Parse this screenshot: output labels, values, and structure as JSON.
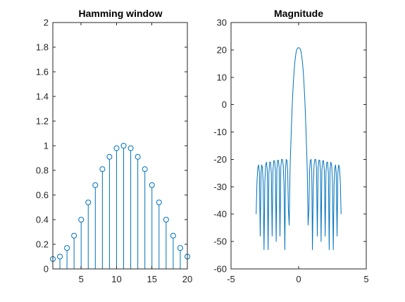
{
  "colors": {
    "series": "#0072BD",
    "axis": "#262626",
    "background": "#ffffff"
  },
  "chart_data": [
    {
      "type": "stem",
      "title": "Hamming window",
      "xlabel": "",
      "ylabel": "",
      "xlim": [
        1,
        20
      ],
      "ylim": [
        0,
        2
      ],
      "xticks": [
        5,
        10,
        15,
        20
      ],
      "xtick_labels": [
        "5",
        "10",
        "15",
        "20"
      ],
      "yticks": [
        0,
        0.2,
        0.4,
        0.6,
        0.8,
        1,
        1.2,
        1.4,
        1.6,
        1.8,
        2
      ],
      "ytick_labels": [
        "0",
        "0.2",
        "0.4",
        "0.6",
        "0.8",
        "1",
        "1.2",
        "1.4",
        "1.6",
        "1.8",
        "2"
      ],
      "grid": false,
      "x": [
        1,
        2,
        3,
        4,
        5,
        6,
        7,
        8,
        9,
        10,
        11,
        12,
        13,
        14,
        15,
        16,
        17,
        18,
        19,
        20
      ],
      "values": [
        0.08,
        0.1,
        0.17,
        0.27,
        0.4,
        0.54,
        0.68,
        0.81,
        0.91,
        0.98,
        1.0,
        0.98,
        0.91,
        0.81,
        0.68,
        0.54,
        0.4,
        0.27,
        0.17,
        0.1
      ]
    },
    {
      "type": "line",
      "title": "Magnitude",
      "xlabel": "",
      "ylabel": "",
      "xlim": [
        -5,
        5
      ],
      "ylim": [
        -60,
        30
      ],
      "xticks": [
        -5,
        0,
        5
      ],
      "xtick_labels": [
        "-5",
        "0",
        "5"
      ],
      "yticks": [
        -60,
        -50,
        -40,
        -30,
        -20,
        -10,
        0,
        10,
        20,
        30
      ],
      "ytick_labels": [
        "-60",
        "-50",
        "-40",
        "-30",
        "-20",
        "-10",
        "0",
        "10",
        "20",
        "30"
      ],
      "grid": false,
      "x": [
        -3.1416,
        -3.08,
        -3.02,
        -2.96,
        -2.9,
        -2.84,
        -2.78,
        -2.73,
        -2.68,
        -2.62,
        -2.56,
        -2.5,
        -2.44,
        -2.38,
        -2.32,
        -2.26,
        -2.2,
        -2.14,
        -2.08,
        -2.02,
        -1.96,
        -1.9,
        -1.84,
        -1.78,
        -1.72,
        -1.66,
        -1.61,
        -1.56,
        -1.5,
        -1.44,
        -1.38,
        -1.32,
        -1.26,
        -1.2,
        -1.14,
        -1.08,
        -1.02,
        -0.97,
        -0.92,
        -0.86,
        -0.81,
        -0.76,
        -0.7,
        -0.65,
        -0.62,
        -0.58,
        -0.54,
        -0.5,
        -0.46,
        -0.42,
        -0.38,
        -0.34,
        -0.3,
        -0.26,
        -0.22,
        -0.18,
        -0.14,
        -0.1,
        -0.06,
        -0.02,
        0,
        0.02,
        0.06,
        0.1,
        0.14,
        0.18,
        0.22,
        0.26,
        0.3,
        0.34,
        0.38,
        0.42,
        0.46,
        0.5,
        0.54,
        0.58,
        0.62,
        0.65,
        0.7,
        0.76,
        0.81,
        0.86,
        0.92,
        0.97,
        1.02,
        1.08,
        1.14,
        1.2,
        1.26,
        1.32,
        1.38,
        1.44,
        1.5,
        1.56,
        1.61,
        1.66,
        1.72,
        1.78,
        1.84,
        1.9,
        1.96,
        2.02,
        2.08,
        2.14,
        2.2,
        2.26,
        2.32,
        2.38,
        2.44,
        2.5,
        2.56,
        2.62,
        2.68,
        2.73,
        2.78,
        2.84,
        2.9,
        2.96,
        3.02,
        3.08,
        3.1416
      ],
      "values": [
        -40,
        -28,
        -23,
        -22,
        -25,
        -48,
        -25,
        -22,
        -23,
        -29,
        -53,
        -28,
        -22,
        -21,
        -24,
        -53,
        -25,
        -21,
        -21,
        -25,
        -48,
        -24,
        -20.5,
        -20.5,
        -24,
        -50,
        -24,
        -20.3,
        -20.3,
        -23,
        -48,
        -23,
        -20,
        -20,
        -22,
        -30,
        -53,
        -24,
        -20,
        -20.5,
        -24,
        -38,
        -44,
        -28,
        -21,
        -15,
        -9,
        -3.5,
        1.5,
        5.5,
        9,
        12,
        14.5,
        16.5,
        18,
        19.3,
        20,
        20.5,
        20.7,
        20.8,
        20.8,
        20.8,
        20.7,
        20.5,
        20,
        19.3,
        18,
        16.5,
        14.5,
        12,
        9,
        5.5,
        1.5,
        -3.5,
        -9,
        -15,
        -21,
        -28,
        -44,
        -38,
        -24,
        -20.5,
        -20,
        -24,
        -53,
        -30,
        -22,
        -20,
        -20,
        -23,
        -48,
        -23,
        -20.3,
        -20.3,
        -24,
        -50,
        -24,
        -20.5,
        -20.5,
        -24,
        -48,
        -25,
        -21,
        -21,
        -25,
        -53,
        -24,
        -21,
        -22,
        -28,
        -53,
        -29,
        -23,
        -22,
        -25,
        -48,
        -25,
        -22,
        -23,
        -28,
        -40
      ]
    }
  ]
}
